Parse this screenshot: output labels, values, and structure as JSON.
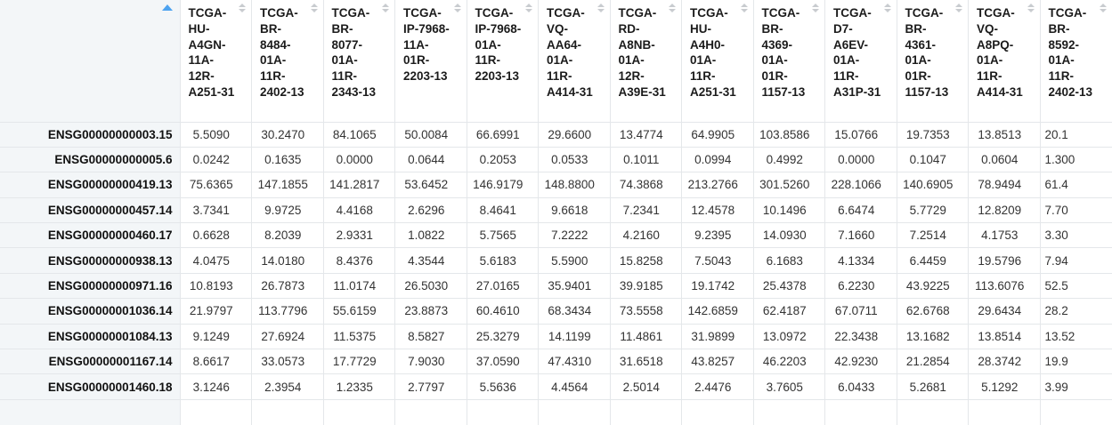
{
  "table": {
    "corner_header": {
      "label": "",
      "sort_state": "ascending"
    },
    "columns": [
      "TCGA-HU-A4GN-11A-12R-A251-31",
      "TCGA-BR-8484-01A-11R-2402-13",
      "TCGA-BR-8077-01A-11R-2343-13",
      "TCGA-IP-7968-11A-01R-2203-13",
      "TCGA-IP-7968-01A-11R-2203-13",
      "TCGA-VQ-AA64-01A-11R-A414-31",
      "TCGA-RD-A8NB-01A-12R-A39E-31",
      "TCGA-HU-A4H0-01A-11R-A251-31",
      "TCGA-BR-4369-01A-01R-1157-13",
      "TCGA-D7-A6EV-01A-11R-A31P-31",
      "TCGA-BR-4361-01A-01R-1157-13",
      "TCGA-VQ-A8PQ-01A-11R-A414-31",
      "TCGA-BR-8592-01A-11R-2402-13"
    ],
    "rows": [
      {
        "label": "ENSG00000000003.15",
        "values": [
          "5.5090",
          "30.2470",
          "84.1065",
          "50.0084",
          "66.6991",
          "29.6600",
          "13.4774",
          "64.9905",
          "103.8586",
          "15.0766",
          "19.7353",
          "13.8513",
          "20.1"
        ]
      },
      {
        "label": "ENSG00000000005.6",
        "values": [
          "0.0242",
          "0.1635",
          "0.0000",
          "0.0644",
          "0.2053",
          "0.0533",
          "0.1011",
          "0.0994",
          "0.4992",
          "0.0000",
          "0.1047",
          "0.0604",
          "1.300"
        ]
      },
      {
        "label": "ENSG00000000419.13",
        "values": [
          "75.6365",
          "147.1855",
          "141.2817",
          "53.6452",
          "146.9179",
          "148.8800",
          "74.3868",
          "213.2766",
          "301.5260",
          "228.1066",
          "140.6905",
          "78.9494",
          "61.4"
        ]
      },
      {
        "label": "ENSG00000000457.14",
        "values": [
          "3.7341",
          "9.9725",
          "4.4168",
          "2.6296",
          "8.4641",
          "9.6618",
          "7.2341",
          "12.4578",
          "10.1496",
          "6.6474",
          "5.7729",
          "12.8209",
          "7.70"
        ]
      },
      {
        "label": "ENSG00000000460.17",
        "values": [
          "0.6628",
          "8.2039",
          "2.9331",
          "1.0822",
          "5.7565",
          "7.2222",
          "4.2160",
          "9.2395",
          "14.0930",
          "7.1660",
          "7.2514",
          "4.1753",
          "3.30"
        ]
      },
      {
        "label": "ENSG00000000938.13",
        "values": [
          "4.0475",
          "14.0180",
          "8.4376",
          "4.3544",
          "5.6183",
          "5.5900",
          "15.8258",
          "7.5043",
          "6.1683",
          "4.1334",
          "6.4459",
          "19.5796",
          "7.94"
        ]
      },
      {
        "label": "ENSG00000000971.16",
        "values": [
          "10.8193",
          "26.7873",
          "11.0174",
          "26.5030",
          "27.0165",
          "35.9401",
          "39.9185",
          "19.1742",
          "25.4378",
          "6.2230",
          "43.9225",
          "113.6076",
          "52.5"
        ]
      },
      {
        "label": "ENSG00000001036.14",
        "values": [
          "21.9797",
          "113.7796",
          "55.6159",
          "23.8873",
          "60.4610",
          "68.3434",
          "73.5558",
          "142.6859",
          "62.4187",
          "67.0711",
          "62.6768",
          "29.6434",
          "28.2"
        ]
      },
      {
        "label": "ENSG00000001084.13",
        "values": [
          "9.1249",
          "27.6924",
          "11.5375",
          "8.5827",
          "25.3279",
          "14.1199",
          "11.4861",
          "31.9899",
          "13.0972",
          "22.3438",
          "13.1682",
          "13.8514",
          "13.52"
        ]
      },
      {
        "label": "ENSG00000001167.14",
        "values": [
          "8.6617",
          "33.0573",
          "17.7729",
          "7.9030",
          "37.0590",
          "47.4310",
          "31.6518",
          "43.8257",
          "46.2203",
          "42.9230",
          "21.2854",
          "28.3742",
          "19.9"
        ]
      },
      {
        "label": "ENSG00000001460.18",
        "values": [
          "3.1246",
          "2.3954",
          "1.2335",
          "2.7797",
          "5.5636",
          "4.4564",
          "2.5014",
          "2.4476",
          "3.7605",
          "6.0433",
          "5.2681",
          "5.1292",
          "3.99"
        ]
      }
    ]
  },
  "icons": {
    "sorted_ascending": "triangle-up",
    "sortable": "triangle-up-down"
  },
  "colors": {
    "sort_active": "#4da3f0",
    "sort_idle": "#c8cbcf",
    "row_label_bg": "#f3f6f8",
    "border": "#e4e7ea",
    "header_text": "#1b1b1b",
    "cell_text": "#333333",
    "table_bg": "#ffffff"
  }
}
